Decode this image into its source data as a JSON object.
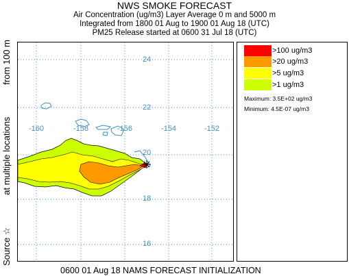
{
  "title": "NWS SMOKE FORECAST",
  "subtitle_lines": [
    "Air Concentration (ug/m3) Layer Average    0 m and  5000 m",
    "Integrated from 1800 01 Aug to 1900 01 Aug 18 (UTC)",
    "PM25 Release started at 0600 31 Jul 18 (UTC)"
  ],
  "side_label": {
    "source": "Source ☆",
    "locations": "at multiple locations",
    "height": "from  100 m"
  },
  "map": {
    "lat_labels": [
      "24",
      "22",
      "20",
      "18",
      "16"
    ],
    "lon_labels": [
      "-160",
      "-158",
      "-156",
      "-154",
      "-152"
    ],
    "grid_color": "#3d8fc4",
    "coast_color": "#3d8fc4"
  },
  "legend": {
    "items": [
      {
        "label": ">100 ug/m3",
        "color": "#ff0000"
      },
      {
        "label": ">20 ug/m3",
        "color": "#ff9900"
      },
      {
        "label": ">5 ug/m3",
        "color": "#ffff00"
      },
      {
        "label": ">1 ug/m3",
        "color": "#ccff00"
      }
    ],
    "maximum": "Maximum: 3.5E+02 ug/m3",
    "minimum": "Minimum: 4.5E-07 ug/m3"
  },
  "footer": "0600 01 Aug 18 NAMS FORECAST INITIALIZATION"
}
